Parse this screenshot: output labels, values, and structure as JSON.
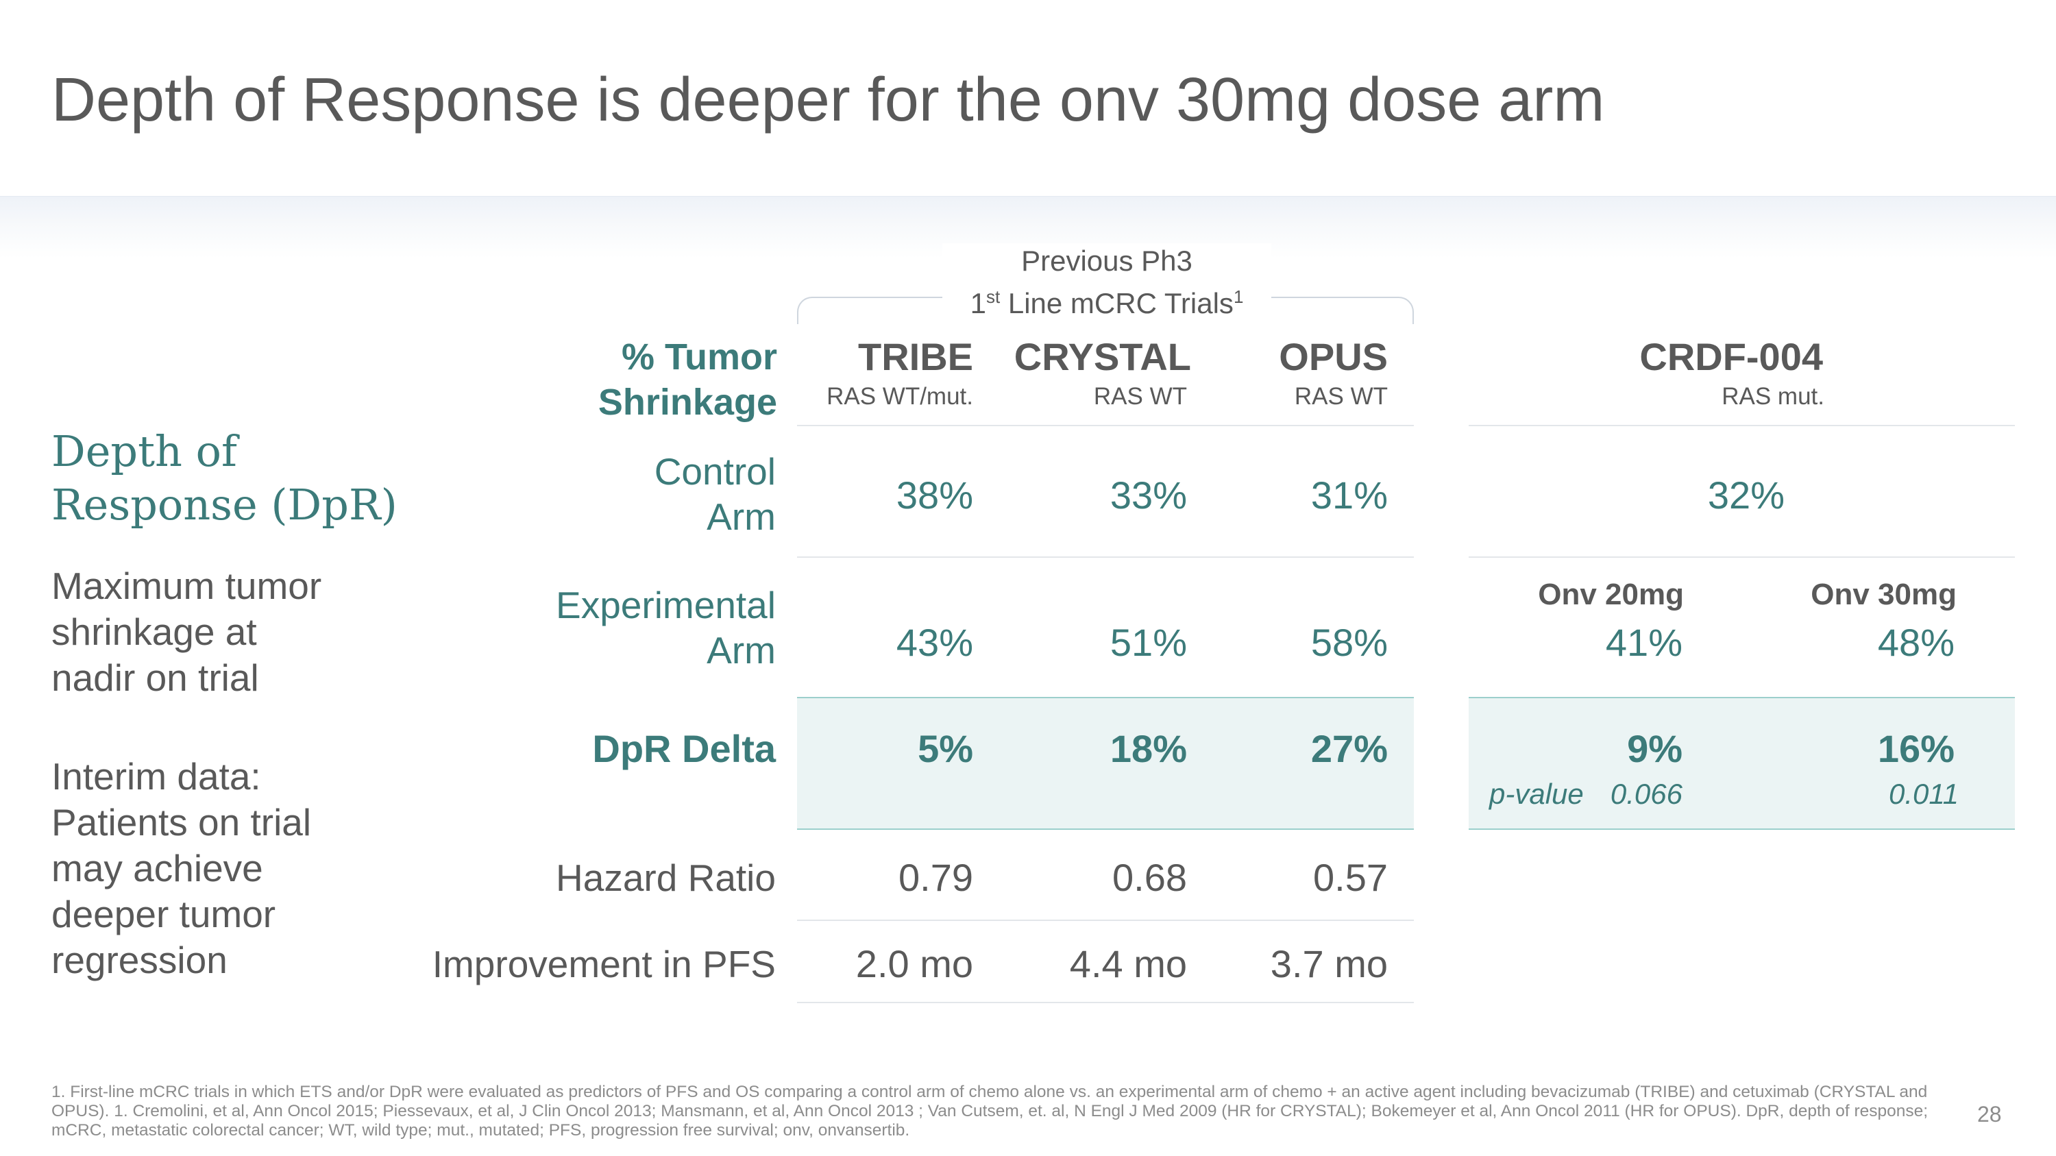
{
  "title": "Depth of Response is deeper for the onv 30mg dose arm",
  "left": {
    "heading_line1": "Depth of",
    "heading_line2": "Response (DpR)",
    "desc_lines": [
      "Maximum tumor",
      "shrinkage at",
      "nadir on trial"
    ],
    "interim_lines": [
      "Interim data:",
      "Patients on trial",
      "may achieve",
      "deeper tumor",
      "regression"
    ]
  },
  "group_header": {
    "line1": "Previous Ph3",
    "line2_prefix": "1",
    "line2_sup": "st",
    "line2_text": " Line mCRC Trials",
    "line2_ref": "1"
  },
  "table": {
    "tumor_header_line1": "% Tumor",
    "tumor_header_line2": "Shrinkage",
    "columns": [
      {
        "name": "TRIBE",
        "sub": "RAS WT/mut."
      },
      {
        "name": "CRYSTAL",
        "sub": "RAS WT"
      },
      {
        "name": "OPUS",
        "sub": "RAS WT"
      }
    ],
    "crdf": {
      "name": "CRDF-004",
      "sub": "RAS mut.",
      "control": "32%",
      "dose_low_label": "Onv 20mg",
      "dose_high_label": "Onv 30mg",
      "exp_low": "41%",
      "exp_high": "48%",
      "delta_low": "9%",
      "delta_high": "16%",
      "pvalue_label": "p-value",
      "pvalue_low": "0.066",
      "pvalue_high": "0.011"
    },
    "rows": {
      "control": {
        "label_line1": "Control",
        "label_line2": "Arm",
        "values": [
          "38%",
          "33%",
          "31%"
        ]
      },
      "experimental": {
        "label_line1": "Experimental",
        "label_line2": "Arm",
        "values": [
          "43%",
          "51%",
          "58%"
        ]
      },
      "delta": {
        "label": "DpR Delta",
        "values": [
          "5%",
          "18%",
          "27%"
        ]
      },
      "hazard": {
        "label": "Hazard Ratio",
        "values": [
          "0.79",
          "0.68",
          "0.57"
        ]
      },
      "pfs": {
        "label": "Improvement in PFS",
        "values": [
          "2.0 mo",
          "4.4 mo",
          "3.7 mo"
        ]
      }
    }
  },
  "footnote": {
    "line1": "1. First-line mCRC trials in which ETS and/or DpR were evaluated as predictors of PFS and OS comparing a control arm of chemo alone vs. an experimental arm of chemo + an active agent including bevacizumab (TRIBE) and cetuximab (CRYSTAL and",
    "line2": "OPUS). 1. Cremolini, et al, Ann Oncol 2015; Piessevaux, et al, J Clin Oncol 2013; Mansmann, et al, Ann Oncol 2013 ; Van Cutsem, et. al, N Engl J Med 2009 (HR for CRYSTAL); Bokemeyer et al, Ann Oncol 2011 (HR for OPUS). DpR, depth of response;",
    "line3": "mCRC, metastatic colorectal cancer; WT, wild type; mut., mutated; PFS, progression free survival; onv, onvansertib."
  },
  "page_number": "28"
}
